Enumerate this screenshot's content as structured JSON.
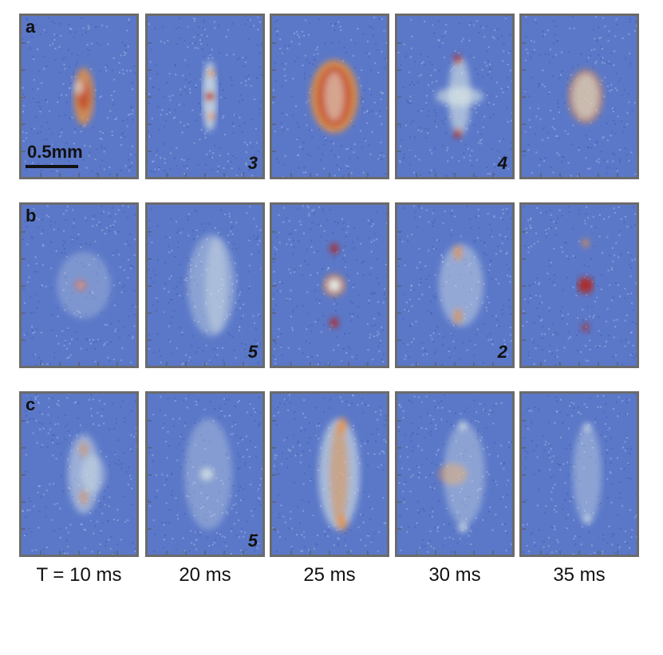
{
  "rows": [
    {
      "label": "a",
      "numbers": [
        "",
        "3",
        "",
        "4",
        ""
      ]
    },
    {
      "label": "b",
      "numbers": [
        "",
        "5",
        "",
        "2",
        ""
      ]
    },
    {
      "label": "c",
      "numbers": [
        "",
        "5",
        "",
        "",
        ""
      ]
    }
  ],
  "scale_bar": {
    "label": "0.5mm"
  },
  "times": [
    "T = 10 ms",
    "20 ms",
    "25 ms",
    "30 ms",
    "35 ms"
  ],
  "colors": {
    "background_noise": "#5b78c8",
    "mid": "#e6f0e8",
    "hot": "#e89040",
    "peak": "#b82010",
    "frame": "#6b6b6b"
  }
}
